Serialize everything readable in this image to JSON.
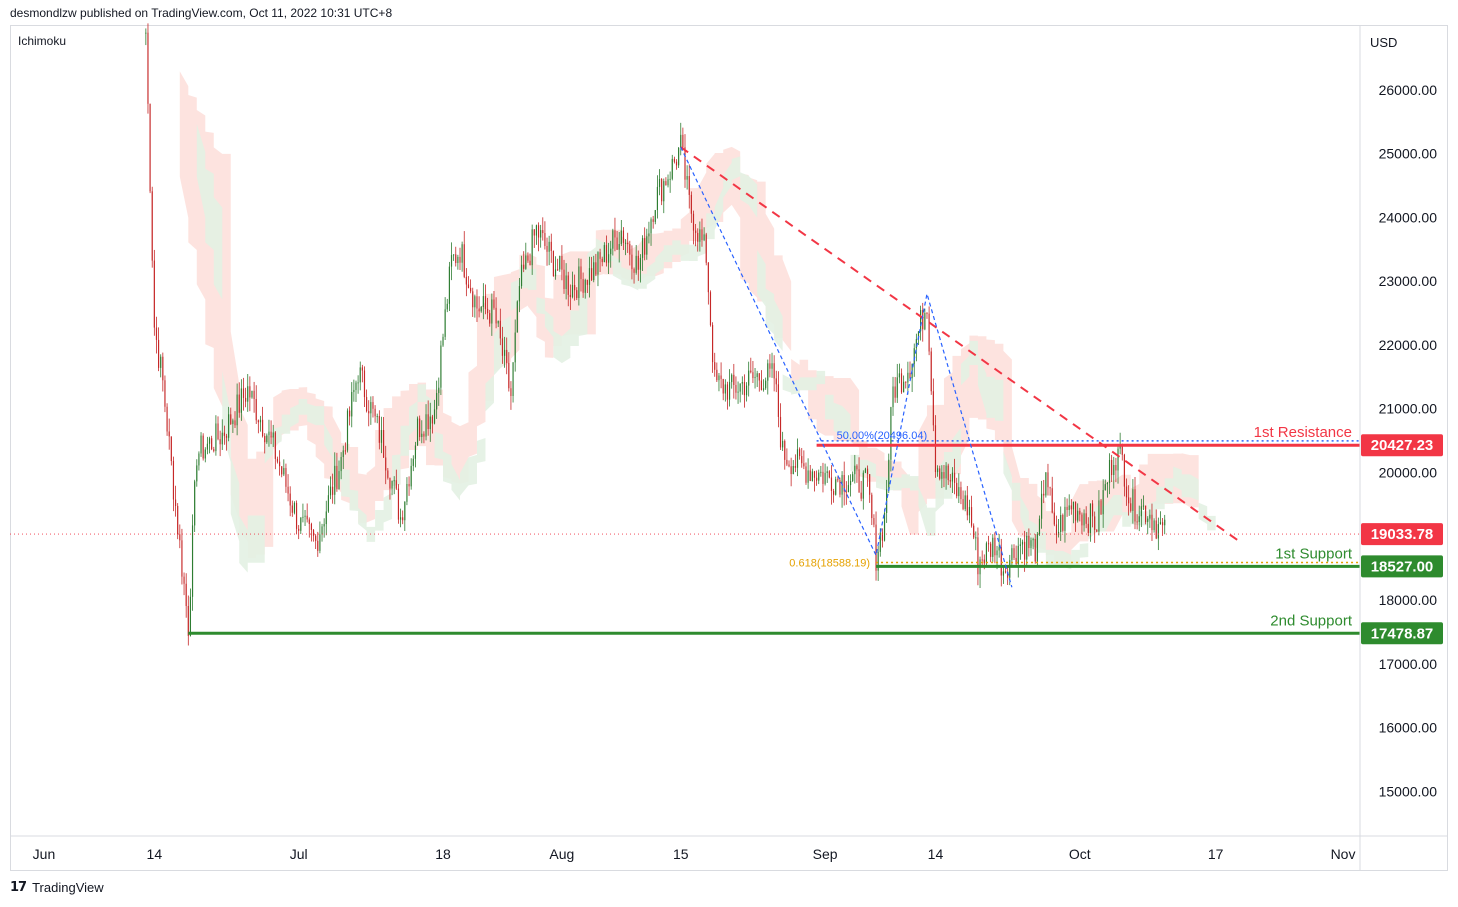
{
  "header": {
    "published": "desmondlzw published on TradingView.com, Oct 11, 2022 10:31 UTC+8"
  },
  "indicator_label": "Ichimoku",
  "footer": {
    "brand": "TradingView",
    "logo_icon": "tradingview-logo-icon"
  },
  "colors": {
    "up": "#26a69a",
    "down": "#ef5350",
    "candle_up": "#2e7d32",
    "candle_down": "#c62828",
    "resistance": "#f23645",
    "support": "#2e8b2e",
    "trend": "#f23645",
    "zigzag": "#2962ff",
    "fib_50": "#2962ff",
    "fib_618": "#e5a100",
    "cloud_bear": "#fde0dc",
    "cloud_bull": "#e3f1e3",
    "last_price": "#f23645"
  },
  "chart_data": {
    "type": "candlestick",
    "currency": "USD",
    "ylim": [
      14300,
      27000
    ],
    "y_ticks": [
      {
        "value": 26000,
        "label": "26000.00"
      },
      {
        "value": 25000,
        "label": "25000.00"
      },
      {
        "value": 24000,
        "label": "24000.00"
      },
      {
        "value": 23000,
        "label": "23000.00"
      },
      {
        "value": 22000,
        "label": "22000.00"
      },
      {
        "value": 21000,
        "label": "21000.00"
      },
      {
        "value": 20000,
        "label": "20000.00"
      },
      {
        "value": 18000,
        "label": "18000.00"
      },
      {
        "value": 17000,
        "label": "17000.00"
      },
      {
        "value": 16000,
        "label": "16000.00"
      },
      {
        "value": 15000,
        "label": "15000.00"
      }
    ],
    "x_ticks": [
      {
        "date": "2022-06-01",
        "label": "Jun"
      },
      {
        "date": "2022-06-14",
        "label": "14"
      },
      {
        "date": "2022-07-01",
        "label": "Jul"
      },
      {
        "date": "2022-07-18",
        "label": "18"
      },
      {
        "date": "2022-08-01",
        "label": "Aug"
      },
      {
        "date": "2022-08-15",
        "label": "15"
      },
      {
        "date": "2022-09-01",
        "label": "Sep"
      },
      {
        "date": "2022-09-14",
        "label": "14"
      },
      {
        "date": "2022-10-01",
        "label": "Oct"
      },
      {
        "date": "2022-10-17",
        "label": "17"
      },
      {
        "date": "2022-11-01",
        "label": "Nov"
      }
    ],
    "x_range": [
      "2022-05-28",
      "2022-11-03"
    ],
    "price_path": [
      [
        "2022-06-13",
        26900
      ],
      [
        "2022-06-14",
        22300
      ],
      [
        "2022-06-15",
        21400
      ],
      [
        "2022-06-16",
        20100
      ],
      [
        "2022-06-18",
        17600
      ],
      [
        "2022-06-19",
        20300
      ],
      [
        "2022-06-22",
        20600
      ],
      [
        "2022-06-25",
        21300
      ],
      [
        "2022-06-28",
        20400
      ],
      [
        "2022-07-01",
        19200
      ],
      [
        "2022-07-03",
        18900
      ],
      [
        "2022-07-06",
        20200
      ],
      [
        "2022-07-08",
        21600
      ],
      [
        "2022-07-11",
        20400
      ],
      [
        "2022-07-13",
        19300
      ],
      [
        "2022-07-15",
        20700
      ],
      [
        "2022-07-17",
        21000
      ],
      [
        "2022-07-19",
        23300
      ],
      [
        "2022-07-20",
        23500
      ],
      [
        "2022-07-22",
        22600
      ],
      [
        "2022-07-24",
        22500
      ],
      [
        "2022-07-26",
        21200
      ],
      [
        "2022-07-27",
        22900
      ],
      [
        "2022-07-29",
        23800
      ],
      [
        "2022-07-31",
        23300
      ],
      [
        "2022-08-02",
        22900
      ],
      [
        "2022-08-05",
        23200
      ],
      [
        "2022-08-08",
        23800
      ],
      [
        "2022-08-10",
        23200
      ],
      [
        "2022-08-12",
        24300
      ],
      [
        "2022-08-14",
        24800
      ],
      [
        "2022-08-15",
        25100
      ],
      [
        "2022-08-16",
        24200
      ],
      [
        "2022-08-18",
        23400
      ],
      [
        "2022-08-19",
        21400
      ],
      [
        "2022-08-21",
        21300
      ],
      [
        "2022-08-24",
        21500
      ],
      [
        "2022-08-26",
        21500
      ],
      [
        "2022-08-27",
        20300
      ],
      [
        "2022-08-29",
        20100
      ],
      [
        "2022-08-31",
        20000
      ],
      [
        "2022-09-02",
        19900
      ],
      [
        "2022-09-04",
        19900
      ],
      [
        "2022-09-06",
        19800
      ],
      [
        "2022-09-07",
        18700
      ],
      [
        "2022-09-08",
        19300
      ],
      [
        "2022-09-09",
        21300
      ],
      [
        "2022-09-11",
        21700
      ],
      [
        "2022-09-13",
        22700
      ],
      [
        "2022-09-14",
        20200
      ],
      [
        "2022-09-16",
        19800
      ],
      [
        "2022-09-18",
        19400
      ],
      [
        "2022-09-19",
        18600
      ],
      [
        "2022-09-21",
        18900
      ],
      [
        "2022-09-22",
        18500
      ],
      [
        "2022-09-24",
        18900
      ],
      [
        "2022-09-26",
        18800
      ],
      [
        "2022-09-27",
        20100
      ],
      [
        "2022-09-28",
        19000
      ],
      [
        "2022-09-30",
        19500
      ],
      [
        "2022-10-02",
        19300
      ],
      [
        "2022-10-03",
        19200
      ],
      [
        "2022-10-05",
        20300
      ],
      [
        "2022-10-06",
        20200
      ],
      [
        "2022-10-07",
        19500
      ],
      [
        "2022-10-09",
        19400
      ],
      [
        "2022-10-10",
        19200
      ],
      [
        "2022-10-11",
        19033.78
      ]
    ],
    "levels": [
      {
        "name": "1st Resistance",
        "value": 20427.23,
        "label": "20427.23",
        "from": "2022-08-31",
        "kind": "resistance"
      },
      {
        "name": "1st Support",
        "value": 18527.0,
        "label": "18527.00",
        "from": "2022-09-07",
        "kind": "support"
      },
      {
        "name": "2nd Support",
        "value": 17478.87,
        "label": "17478.87",
        "from": "2022-06-18",
        "kind": "support"
      }
    ],
    "last_price": {
      "value": 19033.78,
      "label": "19033.78"
    },
    "fib_levels": [
      {
        "label": "50.00%(20496.04)",
        "value": 20496.04,
        "from": "2022-08-31",
        "to": "2022-11-03"
      },
      {
        "label": "0.618(18588.19)",
        "value": 18588.19,
        "from": "2022-09-07",
        "to": "2022-11-03"
      }
    ],
    "trendline": {
      "from": [
        "2022-08-15",
        25100
      ],
      "to": [
        "2022-10-20",
        18900
      ]
    },
    "zigzag": [
      [
        "2022-08-15",
        25100
      ],
      [
        "2022-09-07",
        18700
      ],
      [
        "2022-09-13",
        22800
      ],
      [
        "2022-09-23",
        18200
      ]
    ],
    "annotations": [
      "1st Resistance",
      "1st Support",
      "2nd Support"
    ]
  }
}
